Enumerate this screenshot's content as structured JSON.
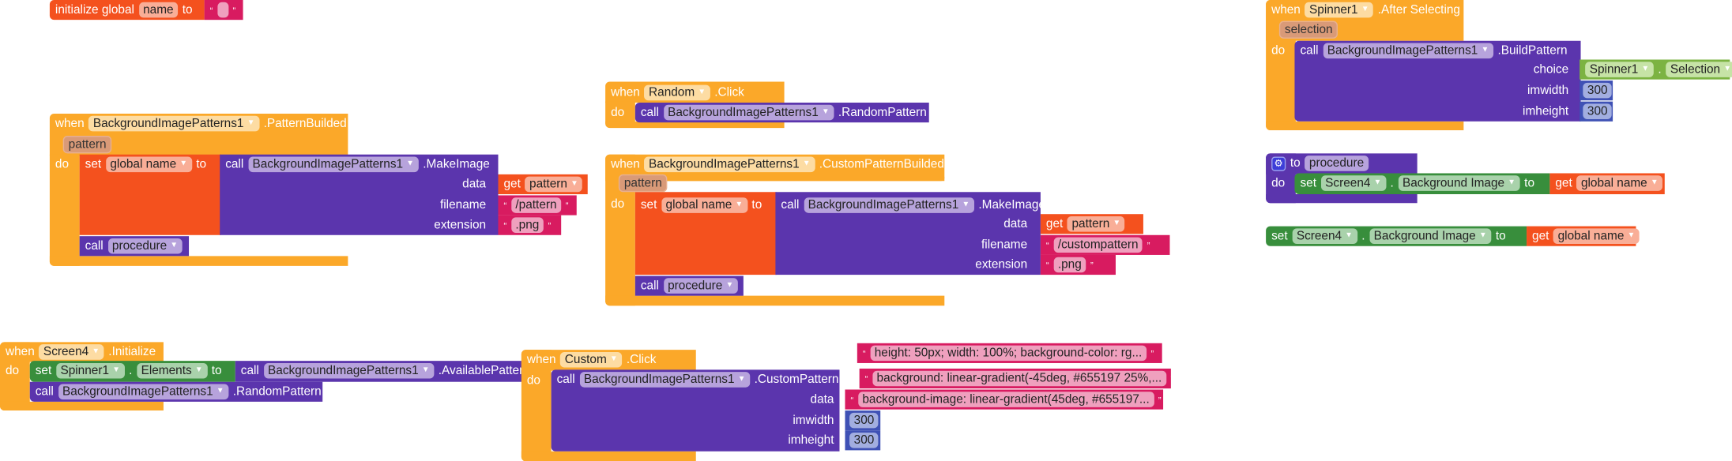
{
  "quotes": {
    "open": "“",
    "close": "”"
  },
  "colors": {
    "control": "#FBA829",
    "variable": "#F4511E",
    "component_method": "#5B35AD",
    "text": "#D81B60",
    "math": "#3F51B5",
    "component_setter": "#388E3C",
    "component_getter": "#7CB342"
  },
  "init_global": {
    "kw": "initialize global",
    "var": "name",
    "to": "to",
    "value": ""
  },
  "pattern_builded": {
    "when": "when",
    "component": "BackgroundImagePatterns1",
    "event": ".PatternBuilded",
    "param": "pattern",
    "do": "do",
    "set": "set",
    "var": "global name",
    "to": "to",
    "call": "call",
    "component2": "BackgroundImagePatterns1",
    "method": ".MakeImage",
    "args": [
      {
        "label": "data",
        "get": "get",
        "value": "pattern"
      },
      {
        "label": "filename",
        "value": "/pattern"
      },
      {
        "label": "extension",
        "value": ".png"
      }
    ],
    "call2": "call",
    "proc": "procedure"
  },
  "random_click": {
    "when": "when",
    "component": "Random",
    "event": ".Click",
    "do": "do",
    "call": "call",
    "component2": "BackgroundImagePatterns1",
    "method": ".RandomPattern"
  },
  "custom_builded": {
    "when": "when",
    "component": "BackgroundImagePatterns1",
    "event": ".CustomPatternBuilded",
    "param": "pattern",
    "do": "do",
    "set": "set",
    "var": "global name",
    "to": "to",
    "call": "call",
    "component2": "BackgroundImagePatterns1",
    "method": ".MakeImage",
    "args": [
      {
        "label": "data",
        "get": "get",
        "value": "pattern"
      },
      {
        "label": "filename",
        "value": "/custompattern"
      },
      {
        "label": "extension",
        "value": ".png"
      }
    ],
    "call2": "call",
    "proc": "procedure"
  },
  "spinner_after": {
    "when": "when",
    "component": "Spinner1",
    "event": ".After Selecting",
    "param": "selection",
    "do": "do",
    "call": "call",
    "component2": "BackgroundImagePatterns1",
    "method": ".BuildPattern",
    "args": [
      {
        "label": "choice",
        "component": "Spinner1",
        "dot": ".",
        "prop": "Selection"
      },
      {
        "label": "imwidth",
        "value": "300"
      },
      {
        "label": "imheight",
        "value": "300"
      }
    ]
  },
  "procedure": {
    "to": "to",
    "name": "procedure",
    "do": "do",
    "set": "set",
    "component": "Screen4",
    "dot": ".",
    "prop": "Background Image",
    "to2": "to",
    "get": "get",
    "var": "global name"
  },
  "loose_set": {
    "set": "set",
    "component": "Screen4",
    "dot": ".",
    "prop": "Background Image",
    "to": "to",
    "get": "get",
    "var": "global name"
  },
  "screen_init": {
    "when": "when",
    "component": "Screen4",
    "event": ".Initialize",
    "do": "do",
    "set": "set",
    "component2": "Spinner1",
    "dot": ".",
    "prop": "Elements",
    "to": "to",
    "call": "call",
    "component3": "BackgroundImagePatterns1",
    "method": ".AvailablePattern",
    "call2": "call",
    "component4": "BackgroundImagePatterns1",
    "method2": ".RandomPattern"
  },
  "custom_click": {
    "when": "when",
    "component": "Custom",
    "event": ".Click",
    "do": "do",
    "call": "call",
    "component2": "BackgroundImagePatterns1",
    "method": ".CustomPattern",
    "args": [
      {
        "label": "data",
        "value": "background-image: linear-gradient(45deg, #655197..."
      },
      {
        "label": "imwidth",
        "value": "300"
      },
      {
        "label": "imheight",
        "value": "300"
      }
    ],
    "loose_texts": [
      "height: 50px; width: 100%; background-color: rg...",
      "background: linear-gradient(-45deg, #655197 25%,..."
    ]
  }
}
